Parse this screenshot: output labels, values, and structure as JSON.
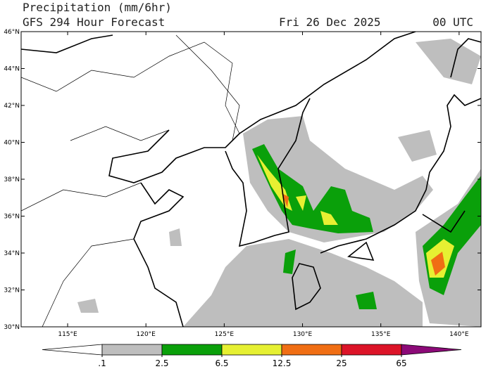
{
  "header": {
    "title": "Precipitation (mm/6hr)",
    "subtitle": "GFS 294 Hour Forecast",
    "date": "Fri 26 Dec 2025",
    "time": "00 UTC"
  },
  "map": {
    "lonlim": [
      112.03,
      141.4
    ],
    "latlim": [
      30,
      46
    ],
    "lat_ticks": [
      {
        "value": 30,
        "label": "30°N"
      },
      {
        "value": 32,
        "label": "32°N"
      },
      {
        "value": 34,
        "label": "34°N"
      },
      {
        "value": 36,
        "label": "36°N"
      },
      {
        "value": 38,
        "label": "38°N"
      },
      {
        "value": 40,
        "label": "40°N"
      },
      {
        "value": 42,
        "label": "42°N"
      },
      {
        "value": 44,
        "label": "44°N"
      },
      {
        "value": 46,
        "label": "46°N"
      }
    ],
    "lon_ticks": [
      {
        "value": 115,
        "label": "115°E"
      },
      {
        "value": 120,
        "label": "120°E"
      },
      {
        "value": 125,
        "label": "125°E"
      },
      {
        "value": 130,
        "label": "130°E"
      },
      {
        "value": 135,
        "label": "135°E"
      },
      {
        "value": 140,
        "label": "140°E"
      }
    ]
  },
  "colorbar": {
    "levels": [
      {
        "value": 0.1,
        "label": ".1"
      },
      2.5,
      6.5,
      12.5,
      25,
      65
    ],
    "colors": [
      "#ffffff",
      "#bebebe",
      "#0aa00a",
      "#e6f032",
      "#f06e14",
      "#dc1428",
      "#8c0a78"
    ]
  }
}
